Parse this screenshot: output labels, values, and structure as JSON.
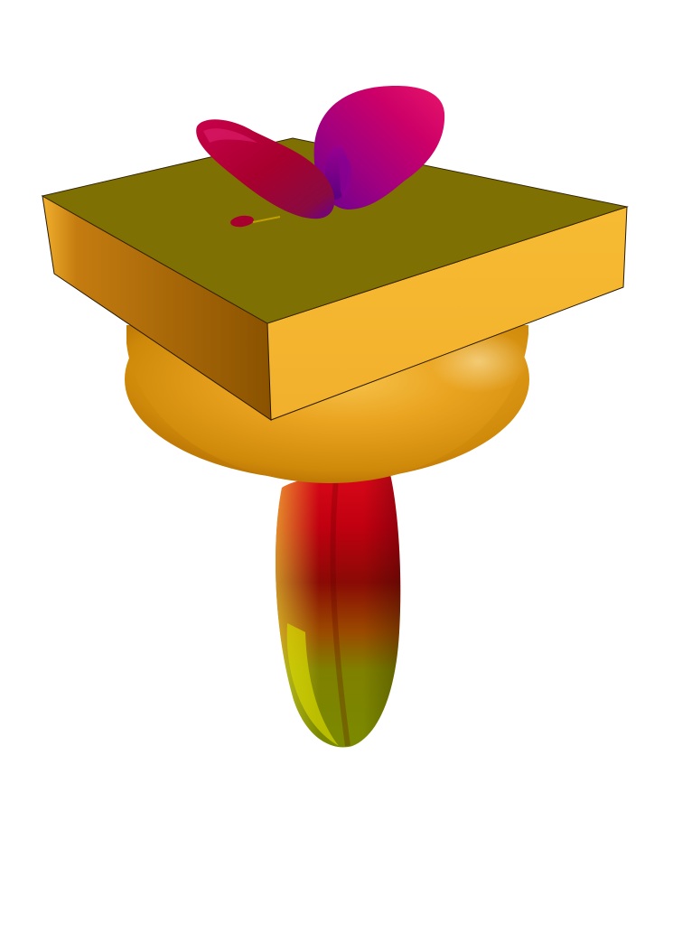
{
  "scene": {
    "background": "#ffffff",
    "colors": {
      "sphere_light": "#f2b53a",
      "sphere_mid": "#d9940f",
      "sphere_dark": "#a86400",
      "plate_top": "#7a6c00",
      "plate_front": "#f5b731",
      "plate_side": "#8c5400",
      "plate_edge": "#2a1a00",
      "lobe_magenta": "#d0005f",
      "lobe_purple": "#7a0096",
      "lobe_crimson": "#b00032",
      "tail_red": "#e10a12",
      "tail_darkred": "#8a0005",
      "tail_olive": "#7f8000",
      "tail_yellow": "#d8d800"
    },
    "objects": [
      "ground-sphere",
      "ground-plate",
      "upper-radiation-lobes",
      "lower-radiation-lobe"
    ]
  }
}
